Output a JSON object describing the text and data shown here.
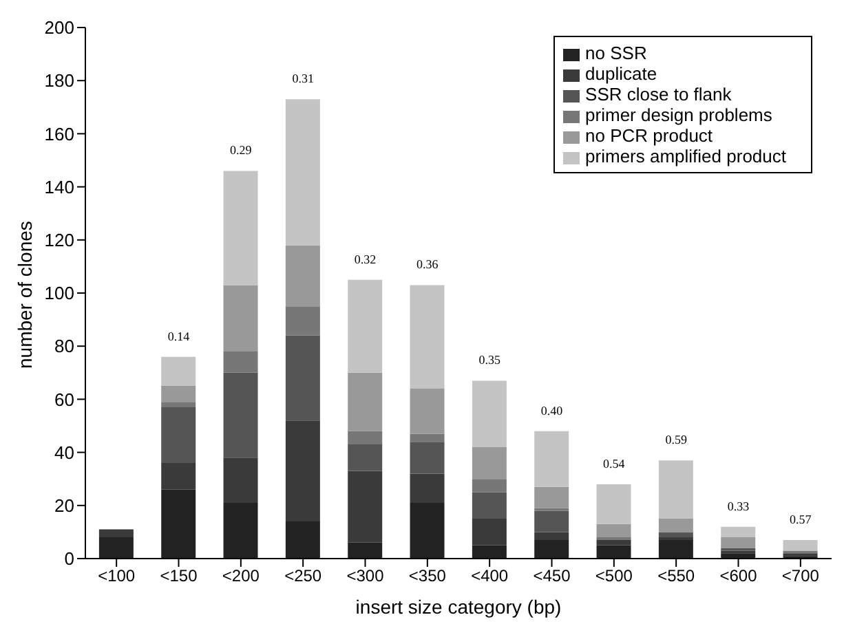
{
  "chart_data": {
    "type": "bar",
    "stacked": true,
    "xlabel": "insert size category (bp)",
    "ylabel": "number of clones",
    "categories": [
      "<100",
      "<150",
      "<200",
      "<250",
      "<300",
      "<350",
      "<400",
      "<450",
      "<500",
      "<550",
      "<600",
      "<700"
    ],
    "series": [
      {
        "name": "no SSR",
        "color": "#222222",
        "values": [
          8,
          26,
          21,
          14,
          6,
          21,
          5,
          7,
          5,
          7,
          2,
          1
        ]
      },
      {
        "name": "duplicate",
        "color": "#3a3a3a",
        "values": [
          3,
          10,
          17,
          38,
          27,
          11,
          10,
          3,
          2,
          1,
          1,
          1
        ]
      },
      {
        "name": "SSR close to flank",
        "color": "#555555",
        "values": [
          0,
          21,
          32,
          32,
          10,
          12,
          10,
          8,
          0,
          2,
          1,
          0
        ]
      },
      {
        "name": "primer design problems",
        "color": "#777777",
        "values": [
          0,
          2,
          8,
          11,
          5,
          3,
          5,
          1,
          1,
          0,
          0,
          1
        ]
      },
      {
        "name": "no PCR product",
        "color": "#999999",
        "values": [
          0,
          6,
          25,
          23,
          22,
          17,
          12,
          8,
          5,
          5,
          4,
          0
        ]
      },
      {
        "name": "primers amplified product",
        "color": "#c4c4c4",
        "values": [
          0,
          11,
          43,
          55,
          35,
          39,
          25,
          21,
          15,
          22,
          4,
          4
        ]
      }
    ],
    "ylim": [
      0,
      200
    ],
    "yticks": [
      0,
      20,
      40,
      60,
      80,
      100,
      120,
      140,
      160,
      180,
      200
    ],
    "grid": false,
    "legend": "top right",
    "annotations": [
      {
        "text": "0.14",
        "x": "<150",
        "y": 76
      },
      {
        "text": "0.29",
        "x": "<200",
        "y": 146
      },
      {
        "text": "0.31",
        "x": "<250",
        "y": 173
      },
      {
        "text": "0.32",
        "x": "<300",
        "y": 105
      },
      {
        "text": "0.36",
        "x": "<350",
        "y": 103
      },
      {
        "text": "0.35",
        "x": "<400",
        "y": 67
      },
      {
        "text": "0.40",
        "x": "<450",
        "y": 48
      },
      {
        "text": "0.54",
        "x": "<500",
        "y": 28
      },
      {
        "text": "0.59",
        "x": "<550",
        "y": 37
      },
      {
        "text": "0.33",
        "x": "<600",
        "y": 12
      },
      {
        "text": "0.57",
        "x": "<700",
        "y": 7
      }
    ]
  }
}
